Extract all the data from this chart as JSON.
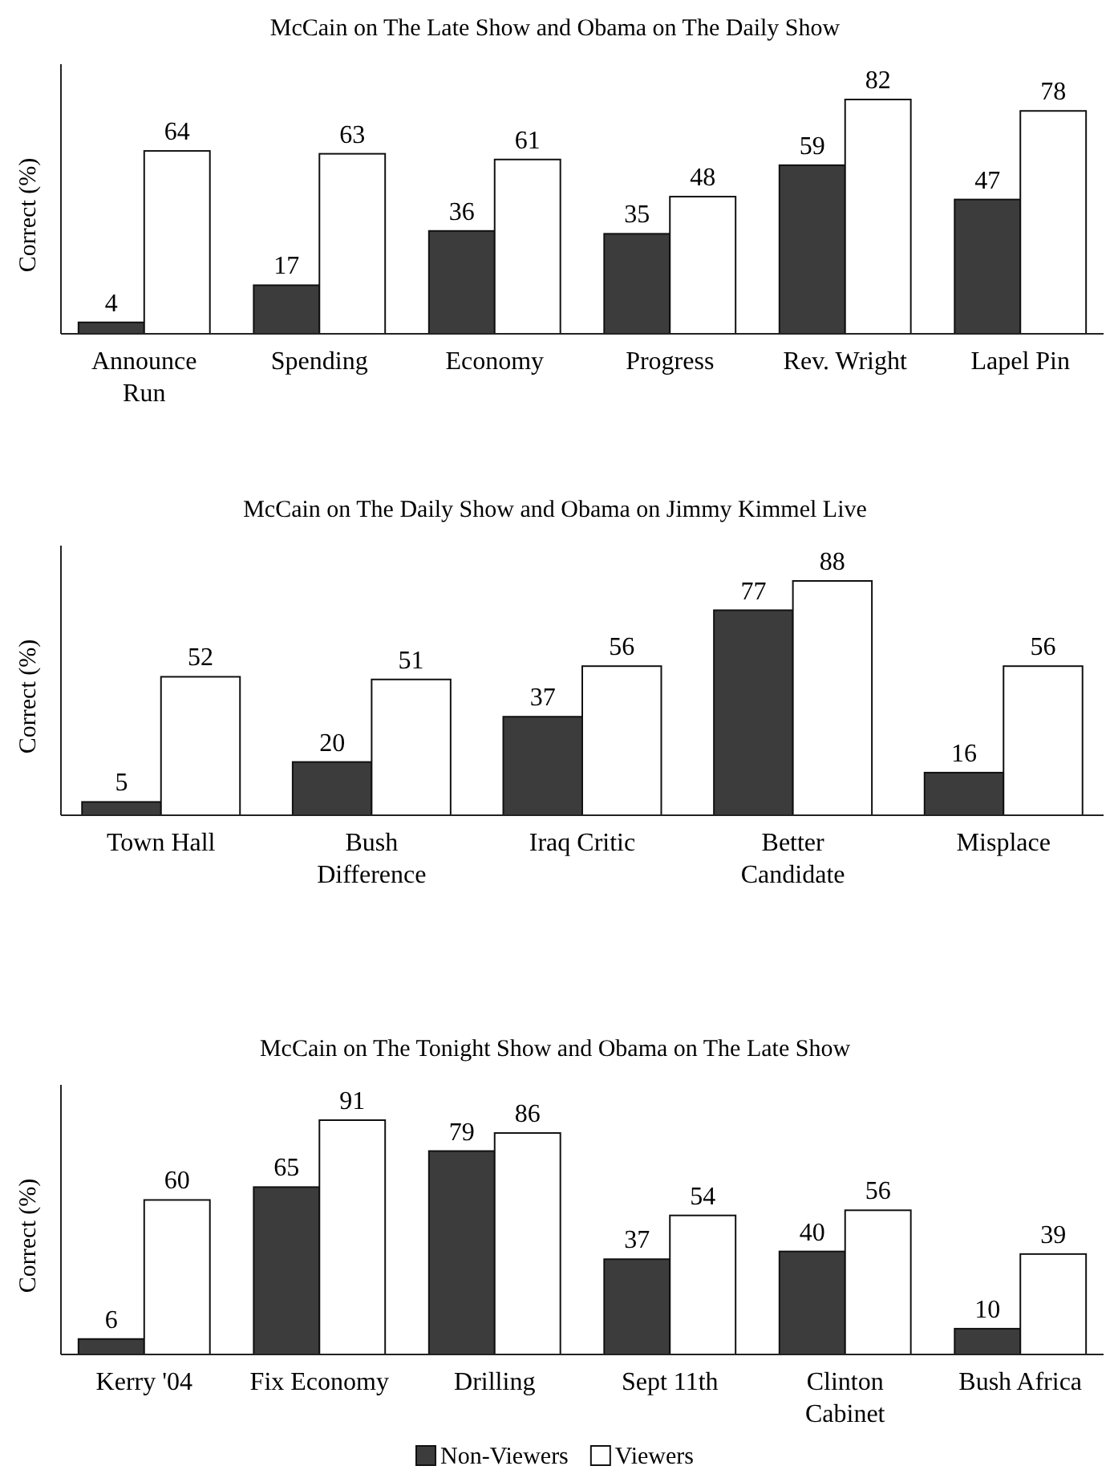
{
  "chart_data": [
    {
      "type": "bar",
      "title": "McCain on The Late Show and Obama on The Daily Show",
      "ylabel": "Correct (%)",
      "categories": [
        "Announce Run",
        "Spending",
        "Economy",
        "Progress",
        "Rev. Wright",
        "Lapel Pin"
      ],
      "data_labels": true,
      "legend": false,
      "tick_labels": "x",
      "series": [
        {
          "color": "#3c3c3c",
          "values": [
            4,
            17,
            36,
            35,
            59,
            47
          ]
        },
        {
          "color": "#ffffff",
          "values": [
            64,
            63,
            61,
            48,
            82,
            78
          ]
        }
      ]
    },
    {
      "type": "bar",
      "title": "McCain on The Daily Show and Obama on Jimmy Kimmel Live",
      "ylabel": "Correct (%)",
      "categories": [
        "Town Hall",
        "Bush Difference",
        "Iraq Critic",
        "Better Candidate",
        "Misplace"
      ],
      "data_labels": true,
      "legend": false,
      "tick_labels": "x",
      "series": [
        {
          "color": "#3c3c3c",
          "values": [
            5,
            20,
            37,
            77,
            16
          ]
        },
        {
          "color": "#ffffff",
          "values": [
            52,
            51,
            56,
            88,
            56
          ]
        }
      ]
    },
    {
      "type": "bar",
      "title": "McCain on The Tonight Show and Obama on The Late Show",
      "ylabel": "Correct (%)",
      "categories": [
        "Kerry '04",
        "Fix Economy",
        "Drilling",
        "Sept 11th",
        "Clinton Cabinet",
        "Bush Africa"
      ],
      "data_labels": true,
      "legend": "bottom",
      "tick_labels": "x",
      "series": [
        {
          "name": "Non-Viewers",
          "color": "#3c3c3c",
          "values": [
            6,
            65,
            79,
            37,
            40,
            10
          ]
        },
        {
          "name": "Viewers",
          "color": "#ffffff",
          "values": [
            60,
            91,
            86,
            54,
            56,
            39
          ]
        }
      ]
    }
  ]
}
